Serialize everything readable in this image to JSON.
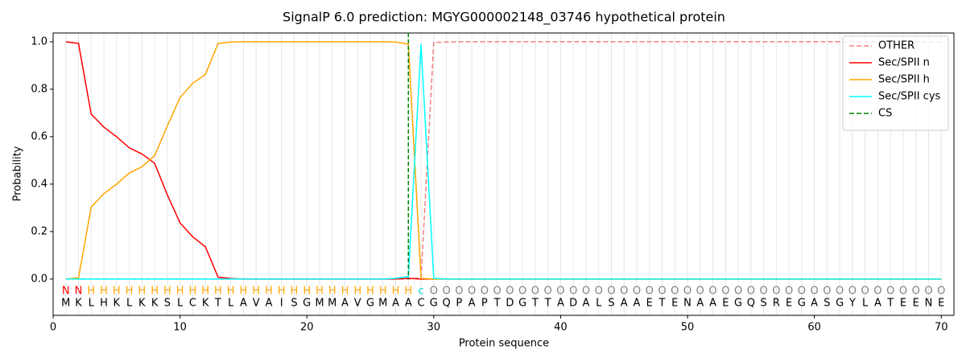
{
  "chart_data": {
    "type": "line",
    "title": "SignalP 6.0 prediction: MGYG000002148_03746 hypothetical protein",
    "xlabel": "Protein sequence",
    "ylabel": "Probability",
    "x": [
      1,
      2,
      3,
      4,
      5,
      6,
      7,
      8,
      9,
      10,
      11,
      12,
      13,
      14,
      15,
      16,
      17,
      18,
      19,
      20,
      21,
      22,
      23,
      24,
      25,
      26,
      27,
      28,
      29,
      30,
      31,
      32,
      33,
      34,
      35,
      36,
      37,
      38,
      39,
      40,
      41,
      42,
      43,
      44,
      45,
      46,
      47,
      48,
      49,
      50,
      51,
      52,
      53,
      54,
      55,
      56,
      57,
      58,
      59,
      60,
      61,
      62,
      63,
      64,
      65,
      66,
      67,
      68,
      69,
      70
    ],
    "sequence": [
      "M",
      "K",
      "L",
      "H",
      "K",
      "L",
      "K",
      "K",
      "S",
      "L",
      "C",
      "K",
      "T",
      "L",
      "A",
      "V",
      "A",
      "I",
      "S",
      "G",
      "M",
      "M",
      "A",
      "V",
      "G",
      "M",
      "A",
      "A",
      "C",
      "G",
      "Q",
      "P",
      "A",
      "P",
      "T",
      "D",
      "G",
      "T",
      "T",
      "A",
      "D",
      "A",
      "L",
      "S",
      "A",
      "A",
      "E",
      "T",
      "E",
      "N",
      "A",
      "A",
      "E",
      "G",
      "Q",
      "S",
      "R",
      "E",
      "G",
      "A",
      "S",
      "G",
      "Y",
      "L",
      "A",
      "T",
      "E",
      "E",
      "N",
      "E"
    ],
    "labels": [
      "N",
      "N",
      "H",
      "H",
      "H",
      "H",
      "H",
      "H",
      "H",
      "H",
      "H",
      "H",
      "H",
      "H",
      "H",
      "H",
      "H",
      "H",
      "H",
      "H",
      "H",
      "H",
      "H",
      "H",
      "H",
      "H",
      "H",
      "H",
      "c",
      "O",
      "O",
      "O",
      "O",
      "O",
      "O",
      "O",
      "O",
      "O",
      "O",
      "O",
      "O",
      "O",
      "O",
      "O",
      "O",
      "O",
      "O",
      "O",
      "O",
      "O",
      "O",
      "O",
      "O",
      "O",
      "O",
      "O",
      "O",
      "O",
      "O",
      "O",
      "O",
      "O",
      "O",
      "O",
      "O",
      "O",
      "O",
      "O",
      "O",
      "O"
    ],
    "label_colors": {
      "N": "#ff0000",
      "H": "#ffa500",
      "c": "#00d8d8",
      "O": "#808080"
    },
    "series": [
      {
        "name": "OTHER",
        "color": "#f08080",
        "linestyle": "dashed",
        "values": [
          0,
          0,
          0,
          0,
          0,
          0,
          0,
          0,
          0,
          0,
          0,
          0,
          0,
          0,
          0,
          0,
          0,
          0,
          0,
          0,
          0,
          0,
          0,
          0,
          0,
          0,
          0,
          0,
          0.005,
          0.997,
          0.999,
          1,
          1,
          1,
          1,
          1,
          1,
          1,
          1,
          1,
          1,
          1,
          1,
          1,
          1,
          1,
          1,
          1,
          1,
          1,
          1,
          1,
          1,
          1,
          1,
          1,
          1,
          1,
          1,
          1,
          1,
          1,
          1,
          1,
          1,
          1,
          1,
          1,
          1,
          1
        ]
      },
      {
        "name": "Sec/SPII n",
        "color": "#ff0000",
        "linestyle": "solid",
        "values": [
          1.0,
          0.993,
          0.695,
          0.64,
          0.6,
          0.553,
          0.527,
          0.488,
          0.355,
          0.237,
          0.178,
          0.136,
          0.008,
          0.002,
          0,
          0,
          0,
          0,
          0,
          0,
          0,
          0,
          0,
          0,
          0,
          0,
          0,
          0.003,
          0,
          0,
          0,
          0,
          0,
          0,
          0,
          0,
          0,
          0,
          0,
          0,
          0,
          0,
          0,
          0,
          0,
          0,
          0,
          0,
          0,
          0,
          0,
          0,
          0,
          0,
          0,
          0,
          0,
          0,
          0,
          0,
          0,
          0,
          0,
          0,
          0,
          0,
          0,
          0,
          0,
          0
        ]
      },
      {
        "name": "Sec/SPII h",
        "color": "#ffa500",
        "linestyle": "solid",
        "values": [
          0,
          0.005,
          0.303,
          0.36,
          0.4,
          0.447,
          0.473,
          0.52,
          0.645,
          0.765,
          0.825,
          0.862,
          0.993,
          0.999,
          1,
          1,
          1,
          1,
          1,
          1,
          1,
          1,
          1,
          1,
          1,
          1,
          0.999,
          0.99,
          0.003,
          0,
          0,
          0,
          0,
          0,
          0,
          0,
          0,
          0,
          0,
          0,
          0,
          0,
          0,
          0,
          0,
          0,
          0,
          0,
          0,
          0,
          0,
          0,
          0,
          0,
          0,
          0,
          0,
          0,
          0,
          0,
          0,
          0,
          0,
          0,
          0,
          0,
          0,
          0,
          0,
          0
        ]
      },
      {
        "name": "Sec/SPII cys",
        "color": "#00ffff",
        "linestyle": "solid",
        "values": [
          0,
          0,
          0,
          0,
          0,
          0,
          0,
          0,
          0,
          0,
          0,
          0,
          0,
          0,
          0,
          0,
          0,
          0,
          0,
          0,
          0,
          0,
          0,
          0,
          0,
          0,
          0.003,
          0.01,
          0.99,
          0.003,
          0,
          0,
          0,
          0,
          0,
          0,
          0,
          0,
          0,
          0,
          0,
          0,
          0,
          0,
          0,
          0,
          0,
          0,
          0,
          0,
          0,
          0,
          0,
          0,
          0,
          0,
          0,
          0,
          0,
          0,
          0,
          0,
          0,
          0,
          0,
          0,
          0,
          0,
          0,
          0
        ]
      }
    ],
    "markers": [
      {
        "name": "CS",
        "x": 28,
        "color": "#008000"
      }
    ],
    "xlim": [
      0,
      71
    ],
    "ylim": [
      -0.153,
      1.037
    ],
    "xticks": [
      0,
      10,
      20,
      30,
      40,
      50,
      60,
      70
    ],
    "yticks": [
      {
        "value": 0,
        "label": "0.0"
      },
      {
        "value": 0.2,
        "label": "0.2"
      },
      {
        "value": 0.4,
        "label": "0.4"
      },
      {
        "value": 0.6,
        "label": "0.6"
      },
      {
        "value": 0.8,
        "label": "0.8"
      },
      {
        "value": 1,
        "label": "1.0"
      }
    ],
    "grid": true,
    "legend": "upper right"
  }
}
